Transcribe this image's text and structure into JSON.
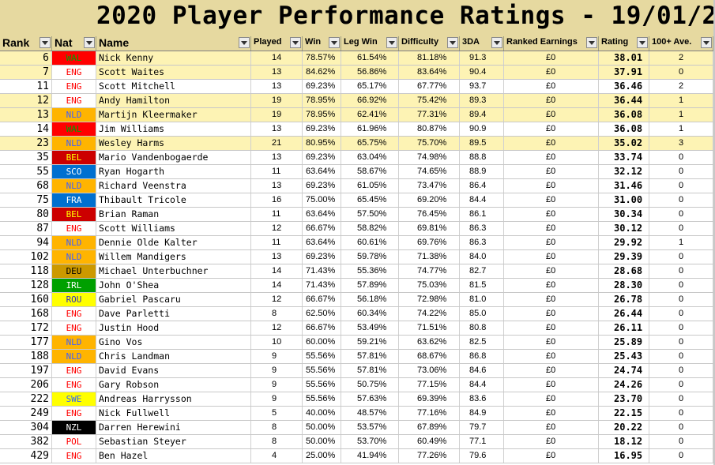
{
  "title": "2020 Player Performance Ratings - 19/01/20",
  "headers": [
    "Rank",
    "Nat",
    "Name",
    "Played",
    "Win",
    "Leg Win",
    "Difficulty",
    "3DA",
    "Ranked Earnings",
    "Rating",
    "100+ Ave."
  ],
  "nat_colors": {
    "WAL": {
      "bg": "#ff0000",
      "fg": "#00a000"
    },
    "ENG": {
      "bg": "#ffffff",
      "fg": "#ff0000"
    },
    "NLD": {
      "bg": "#ffb400",
      "fg": "#4060ff"
    },
    "BEL": {
      "bg": "#cc0000",
      "fg": "#ffff00"
    },
    "SCO": {
      "bg": "#0070d0",
      "fg": "#ffffff"
    },
    "FRA": {
      "bg": "#0070d0",
      "fg": "#ffffff"
    },
    "DEU": {
      "bg": "#cc9900",
      "fg": "#000000"
    },
    "IRL": {
      "bg": "#00a000",
      "fg": "#ffffff"
    },
    "ROU": {
      "bg": "#ffff00",
      "fg": "#3030c0"
    },
    "SWE": {
      "bg": "#ffff00",
      "fg": "#3060ff"
    },
    "NZL": {
      "bg": "#000000",
      "fg": "#ffffff"
    },
    "POL": {
      "bg": "#ffffff",
      "fg": "#ff0000"
    }
  },
  "rows": [
    {
      "rank": "6",
      "nat": "WAL",
      "name": "Nick Kenny",
      "played": "14",
      "win": "78.57%",
      "leg_win": "61.54%",
      "difficulty": "81.18%",
      "tda": "91.3",
      "earnings": "£0",
      "rating": "38.01",
      "ton_ave": "2",
      "highlight": true
    },
    {
      "rank": "7",
      "nat": "ENG",
      "name": "Scott Waites",
      "played": "13",
      "win": "84.62%",
      "leg_win": "56.86%",
      "difficulty": "83.64%",
      "tda": "90.4",
      "earnings": "£0",
      "rating": "37.91",
      "ton_ave": "0",
      "highlight": true
    },
    {
      "rank": "11",
      "nat": "ENG",
      "name": "Scott Mitchell",
      "played": "13",
      "win": "69.23%",
      "leg_win": "65.17%",
      "difficulty": "67.77%",
      "tda": "93.7",
      "earnings": "£0",
      "rating": "36.46",
      "ton_ave": "2",
      "highlight": false
    },
    {
      "rank": "12",
      "nat": "ENG",
      "name": "Andy Hamilton",
      "played": "19",
      "win": "78.95%",
      "leg_win": "66.92%",
      "difficulty": "75.42%",
      "tda": "89.3",
      "earnings": "£0",
      "rating": "36.44",
      "ton_ave": "1",
      "highlight": true
    },
    {
      "rank": "13",
      "nat": "NLD",
      "name": "Martijn Kleermaker",
      "played": "19",
      "win": "78.95%",
      "leg_win": "62.41%",
      "difficulty": "77.31%",
      "tda": "89.4",
      "earnings": "£0",
      "rating": "36.08",
      "ton_ave": "1",
      "highlight": true
    },
    {
      "rank": "14",
      "nat": "WAL",
      "name": "Jim Williams",
      "played": "13",
      "win": "69.23%",
      "leg_win": "61.96%",
      "difficulty": "80.87%",
      "tda": "90.9",
      "earnings": "£0",
      "rating": "36.08",
      "ton_ave": "1",
      "highlight": false
    },
    {
      "rank": "23",
      "nat": "NLD",
      "name": "Wesley Harms",
      "played": "21",
      "win": "80.95%",
      "leg_win": "65.75%",
      "difficulty": "75.70%",
      "tda": "89.5",
      "earnings": "£0",
      "rating": "35.02",
      "ton_ave": "3",
      "highlight": true
    },
    {
      "rank": "35",
      "nat": "BEL",
      "name": "Mario Vandenbogaerde",
      "played": "13",
      "win": "69.23%",
      "leg_win": "63.04%",
      "difficulty": "74.98%",
      "tda": "88.8",
      "earnings": "£0",
      "rating": "33.74",
      "ton_ave": "0",
      "highlight": false
    },
    {
      "rank": "55",
      "nat": "SCO",
      "name": "Ryan Hogarth",
      "played": "11",
      "win": "63.64%",
      "leg_win": "58.67%",
      "difficulty": "74.65%",
      "tda": "88.9",
      "earnings": "£0",
      "rating": "32.12",
      "ton_ave": "0",
      "highlight": false
    },
    {
      "rank": "68",
      "nat": "NLD",
      "name": "Richard Veenstra",
      "played": "13",
      "win": "69.23%",
      "leg_win": "61.05%",
      "difficulty": "73.47%",
      "tda": "86.4",
      "earnings": "£0",
      "rating": "31.46",
      "ton_ave": "0",
      "highlight": false
    },
    {
      "rank": "75",
      "nat": "FRA",
      "name": "Thibault Tricole",
      "played": "16",
      "win": "75.00%",
      "leg_win": "65.45%",
      "difficulty": "69.20%",
      "tda": "84.4",
      "earnings": "£0",
      "rating": "31.00",
      "ton_ave": "0",
      "highlight": false
    },
    {
      "rank": "80",
      "nat": "BEL",
      "name": "Brian Raman",
      "played": "11",
      "win": "63.64%",
      "leg_win": "57.50%",
      "difficulty": "76.45%",
      "tda": "86.1",
      "earnings": "£0",
      "rating": "30.34",
      "ton_ave": "0",
      "highlight": false
    },
    {
      "rank": "87",
      "nat": "ENG",
      "name": "Scott Williams",
      "played": "12",
      "win": "66.67%",
      "leg_win": "58.82%",
      "difficulty": "69.81%",
      "tda": "86.3",
      "earnings": "£0",
      "rating": "30.12",
      "ton_ave": "0",
      "highlight": false
    },
    {
      "rank": "94",
      "nat": "NLD",
      "name": "Dennie Olde Kalter",
      "played": "11",
      "win": "63.64%",
      "leg_win": "60.61%",
      "difficulty": "69.76%",
      "tda": "86.3",
      "earnings": "£0",
      "rating": "29.92",
      "ton_ave": "1",
      "highlight": false
    },
    {
      "rank": "102",
      "nat": "NLD",
      "name": "Willem Mandigers",
      "played": "13",
      "win": "69.23%",
      "leg_win": "59.78%",
      "difficulty": "71.38%",
      "tda": "84.0",
      "earnings": "£0",
      "rating": "29.39",
      "ton_ave": "0",
      "highlight": false
    },
    {
      "rank": "118",
      "nat": "DEU",
      "name": "Michael Unterbuchner",
      "played": "14",
      "win": "71.43%",
      "leg_win": "55.36%",
      "difficulty": "74.77%",
      "tda": "82.7",
      "earnings": "£0",
      "rating": "28.68",
      "ton_ave": "0",
      "highlight": false
    },
    {
      "rank": "128",
      "nat": "IRL",
      "name": "John O'Shea",
      "played": "14",
      "win": "71.43%",
      "leg_win": "57.89%",
      "difficulty": "75.03%",
      "tda": "81.5",
      "earnings": "£0",
      "rating": "28.30",
      "ton_ave": "0",
      "highlight": false
    },
    {
      "rank": "160",
      "nat": "ROU",
      "name": "Gabriel Pascaru",
      "played": "12",
      "win": "66.67%",
      "leg_win": "56.18%",
      "difficulty": "72.98%",
      "tda": "81.0",
      "earnings": "£0",
      "rating": "26.78",
      "ton_ave": "0",
      "highlight": false
    },
    {
      "rank": "168",
      "nat": "ENG",
      "name": "Dave Parletti",
      "played": "8",
      "win": "62.50%",
      "leg_win": "60.34%",
      "difficulty": "74.22%",
      "tda": "85.0",
      "earnings": "£0",
      "rating": "26.44",
      "ton_ave": "0",
      "highlight": false
    },
    {
      "rank": "172",
      "nat": "ENG",
      "name": "Justin Hood",
      "played": "12",
      "win": "66.67%",
      "leg_win": "53.49%",
      "difficulty": "71.51%",
      "tda": "80.8",
      "earnings": "£0",
      "rating": "26.11",
      "ton_ave": "0",
      "highlight": false
    },
    {
      "rank": "177",
      "nat": "NLD",
      "name": "Gino Vos",
      "played": "10",
      "win": "60.00%",
      "leg_win": "59.21%",
      "difficulty": "63.62%",
      "tda": "82.5",
      "earnings": "£0",
      "rating": "25.89",
      "ton_ave": "0",
      "highlight": false
    },
    {
      "rank": "188",
      "nat": "NLD",
      "name": "Chris Landman",
      "played": "9",
      "win": "55.56%",
      "leg_win": "57.81%",
      "difficulty": "68.67%",
      "tda": "86.8",
      "earnings": "£0",
      "rating": "25.43",
      "ton_ave": "0",
      "highlight": false
    },
    {
      "rank": "197",
      "nat": "ENG",
      "name": "David Evans",
      "played": "9",
      "win": "55.56%",
      "leg_win": "57.81%",
      "difficulty": "73.06%",
      "tda": "84.6",
      "earnings": "£0",
      "rating": "24.74",
      "ton_ave": "0",
      "highlight": false
    },
    {
      "rank": "206",
      "nat": "ENG",
      "name": "Gary Robson",
      "played": "9",
      "win": "55.56%",
      "leg_win": "50.75%",
      "difficulty": "77.15%",
      "tda": "84.4",
      "earnings": "£0",
      "rating": "24.26",
      "ton_ave": "0",
      "highlight": false
    },
    {
      "rank": "222",
      "nat": "SWE",
      "name": "Andreas Harrysson",
      "played": "9",
      "win": "55.56%",
      "leg_win": "57.63%",
      "difficulty": "69.39%",
      "tda": "83.6",
      "earnings": "£0",
      "rating": "23.70",
      "ton_ave": "0",
      "highlight": false
    },
    {
      "rank": "249",
      "nat": "ENG",
      "name": "Nick Fullwell",
      "played": "5",
      "win": "40.00%",
      "leg_win": "48.57%",
      "difficulty": "77.16%",
      "tda": "84.9",
      "earnings": "£0",
      "rating": "22.15",
      "ton_ave": "0",
      "highlight": false
    },
    {
      "rank": "304",
      "nat": "NZL",
      "name": "Darren Herewini",
      "played": "8",
      "win": "50.00%",
      "leg_win": "53.57%",
      "difficulty": "67.89%",
      "tda": "79.7",
      "earnings": "£0",
      "rating": "20.22",
      "ton_ave": "0",
      "highlight": false
    },
    {
      "rank": "382",
      "nat": "POL",
      "name": "Sebastian Steyer",
      "played": "8",
      "win": "50.00%",
      "leg_win": "53.70%",
      "difficulty": "60.49%",
      "tda": "77.1",
      "earnings": "£0",
      "rating": "18.12",
      "ton_ave": "0",
      "highlight": false
    },
    {
      "rank": "429",
      "nat": "ENG",
      "name": "Ben Hazel",
      "played": "4",
      "win": "25.00%",
      "leg_win": "41.94%",
      "difficulty": "77.26%",
      "tda": "79.6",
      "earnings": "£0",
      "rating": "16.95",
      "ton_ave": "0",
      "highlight": false
    }
  ]
}
